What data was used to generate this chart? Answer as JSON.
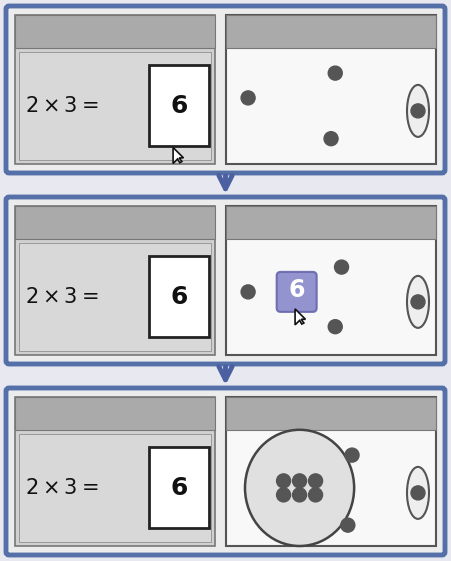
{
  "fig_bg": "#e8e8f0",
  "frame_bg": "#ececec",
  "frame_border": "#5570a8",
  "frame_lw": 3.5,
  "bar_color": "#aaaaaa",
  "pim_left_bg": "#d0d0d0",
  "pim_left_inner": "#d8d8d8",
  "right_pim_bg": "#f8f8f8",
  "right_pim_border": "#555555",
  "counter_color": "#555555",
  "arrow_color": "#4a60a0",
  "slot_bg": "#ffffff",
  "slot_border": "#222222",
  "drag_bg": "#8888cc",
  "drag_border": "#6666aa",
  "eq_color": "#111111",
  "big_ell_fill": "#e0e0e0",
  "big_ell_border": "#444444",
  "small_ell_fill": "#eeeeee",
  "small_ell_border": "#555555",
  "cursor_fill": "#ffffff",
  "cursor_border": "#111111"
}
